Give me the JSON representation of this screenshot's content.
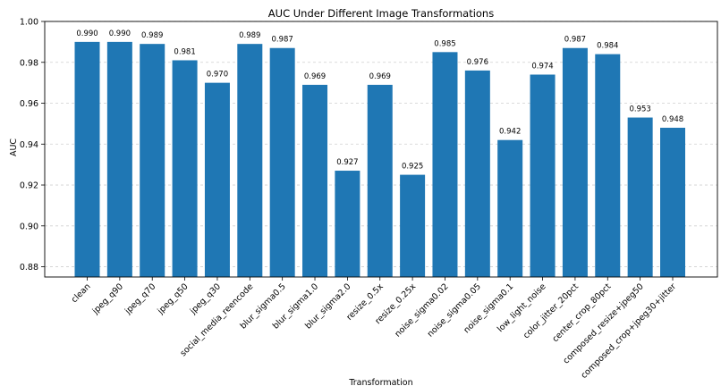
{
  "chart_data": {
    "type": "bar",
    "title": "AUC Under Different Image Transformations",
    "xlabel": "Transformation",
    "ylabel": "AUC",
    "ylim": [
      0.875,
      1.0
    ],
    "yticks": [
      "0.88",
      "0.90",
      "0.92",
      "0.94",
      "0.96",
      "0.98",
      "1.00"
    ],
    "ytick_values": [
      0.88,
      0.9,
      0.92,
      0.94,
      0.96,
      0.98,
      1.0
    ],
    "grid": "horizontal dashed",
    "bar_color": "#1f77b4",
    "categories": [
      "clean",
      "jpeg_q90",
      "jpeg_q70",
      "jpeg_q50",
      "jpeg_q30",
      "social_media_reencode",
      "blur_sigma0.5",
      "blur_sigma1.0",
      "blur_sigma2.0",
      "resize_0.5x",
      "resize_0.25x",
      "noise_sigma0.02",
      "noise_sigma0.05",
      "noise_sigma0.1",
      "low_light_noise",
      "color_jitter_20pct",
      "center_crop_80pct",
      "composed_resize+jpeg50",
      "composed_crop+jpeg30+jitter"
    ],
    "values": [
      0.99,
      0.99,
      0.989,
      0.981,
      0.97,
      0.989,
      0.987,
      0.969,
      0.927,
      0.969,
      0.925,
      0.985,
      0.976,
      0.942,
      0.974,
      0.987,
      0.984,
      0.953,
      0.948
    ],
    "value_labels": [
      "0.990",
      "0.990",
      "0.989",
      "0.981",
      "0.970",
      "0.989",
      "0.987",
      "0.969",
      "0.927",
      "0.969",
      "0.925",
      "0.985",
      "0.976",
      "0.942",
      "0.974",
      "0.987",
      "0.984",
      "0.953",
      "0.948"
    ]
  }
}
